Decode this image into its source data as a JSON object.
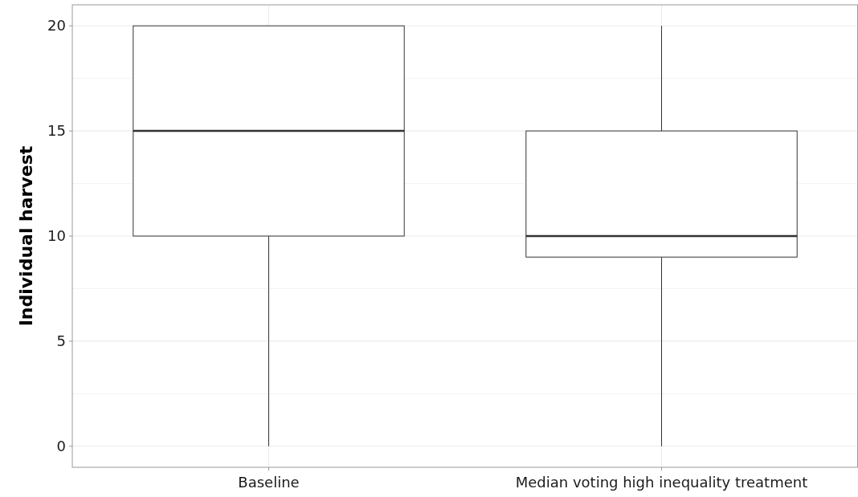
{
  "chart_data": {
    "type": "box",
    "ylabel": "Individual harvest",
    "categories": [
      "Baseline",
      "Median voting high inequality treatment"
    ],
    "boxes": [
      {
        "low": 0,
        "q1": 10,
        "median": 15,
        "q3": 20,
        "high": 20
      },
      {
        "low": 0,
        "q1": 9,
        "median": 10,
        "q3": 15,
        "high": 20
      }
    ],
    "ylim": [
      -1,
      21
    ],
    "yticks": [
      0,
      {
        "value": 2.5,
        "label": null
      },
      5,
      {
        "value": 7.5,
        "label": null
      },
      10,
      {
        "value": 12.5,
        "label": null
      },
      15,
      {
        "value": 17.5,
        "label": null
      },
      20
    ],
    "grid": true
  }
}
